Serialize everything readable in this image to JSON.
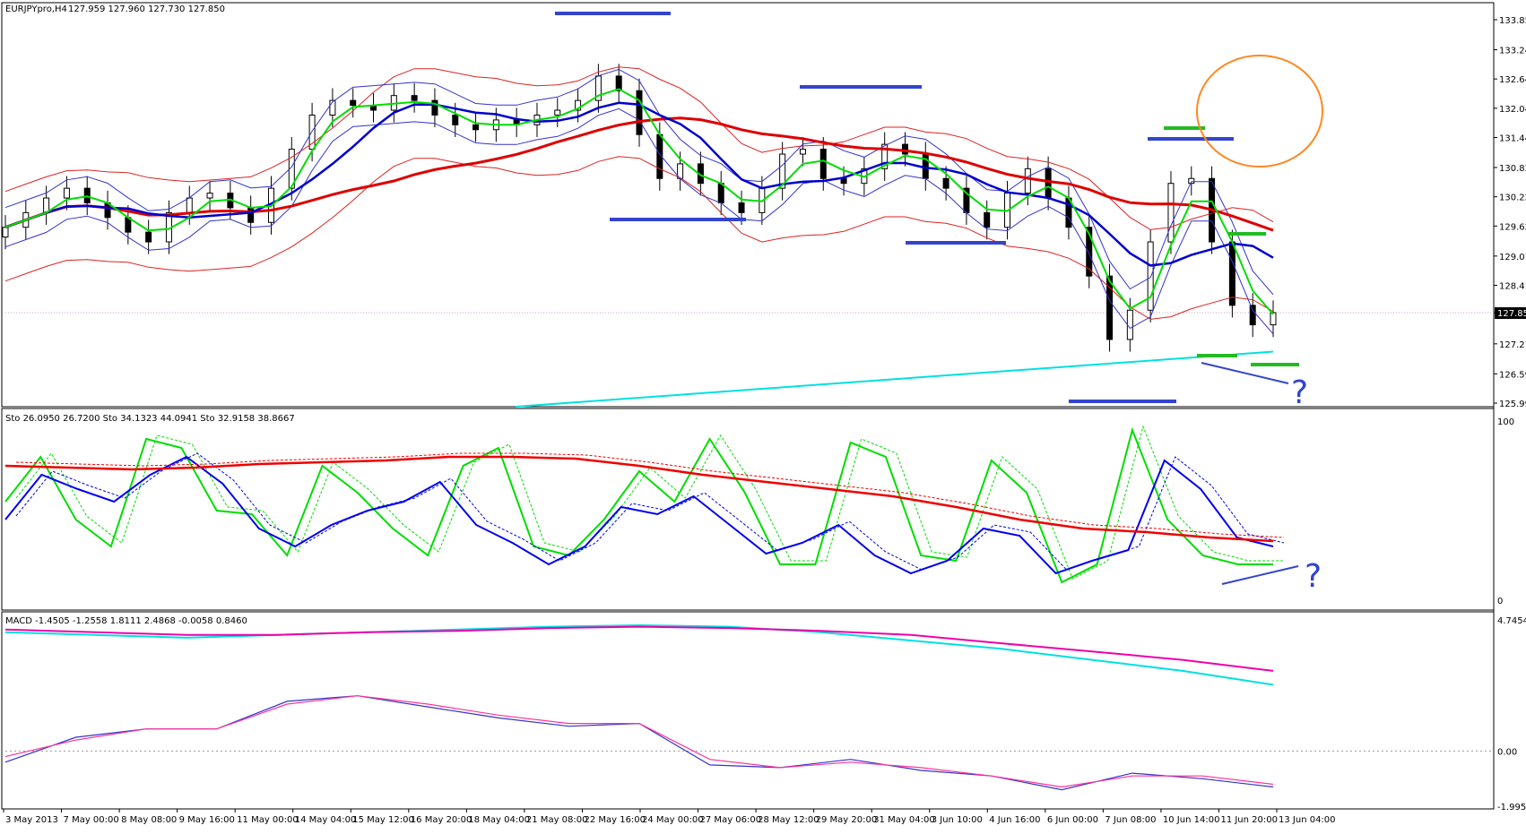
{
  "chart_data": {
    "type": "line",
    "instrument_label": "EURJPYpro,H4",
    "ohlc_label": "127.959 127.960 127.730 127.850",
    "current_price_label": "127.850",
    "price_ylim": [
      125.995,
      133.855
    ],
    "price_ticks": [
      "133.855",
      "133.240",
      "132.640",
      "132.040",
      "131.440",
      "130.825",
      "130.225",
      "129.625",
      "129.010",
      "128.410",
      "127.850",
      "127.210",
      "126.595",
      "125.995"
    ],
    "x_tick_labels": [
      "3 May 2013",
      "7 May 00:00",
      "8 May 08:00",
      "9 May 16:00",
      "11 May 00:00",
      "14 May 04:00",
      "15 May 12:00",
      "16 May 20:00",
      "18 May 04:00",
      "21 May 08:00",
      "22 May 16:00",
      "24 May 00:00",
      "27 May 06:00",
      "28 May 12:00",
      "29 May 20:00",
      "31 May 04:00",
      "3 Jun 10:00",
      "4 Jun 16:00",
      "6 Jun 00:00",
      "7 Jun 08:00",
      "10 Jun 14:00",
      "11 Jun 20:00",
      "13 Jun 04:00"
    ],
    "price_panel_series": [
      {
        "color": "#000000",
        "kind": "candles",
        "close_values": [
          129.6,
          129.9,
          130.2,
          130.4,
          130.1,
          129.8,
          129.5,
          129.3,
          129.9,
          130.2,
          130.3,
          130.0,
          129.7,
          130.4,
          131.2,
          131.9,
          132.2,
          132.1,
          132.0,
          132.3,
          132.2,
          131.9,
          131.7,
          131.6,
          131.8,
          131.7,
          131.9,
          132.0,
          132.2,
          132.7,
          132.4,
          131.5,
          130.6,
          130.9,
          130.5,
          130.1,
          129.9,
          130.4,
          131.1,
          131.2,
          130.6,
          130.5,
          130.8,
          131.3,
          131.1,
          130.6,
          130.4,
          129.9,
          129.6,
          130.3,
          130.8,
          130.2,
          129.6,
          128.6,
          127.3,
          127.9,
          129.3,
          130.5,
          130.6,
          129.3,
          128.0,
          127.6,
          127.85
        ]
      },
      {
        "color": "#00dd00",
        "kind": "moving-average-short"
      },
      {
        "color": "#0000cc",
        "kind": "moving-average-medium"
      },
      {
        "color": "#dd0000",
        "kind": "moving-average-long"
      },
      {
        "color": "#00e0e0",
        "kind": "moving-average-very-long"
      },
      {
        "color": "#3333cc",
        "kind": "bollinger-bands"
      },
      {
        "color": "#dd2222",
        "kind": "bollinger-bands-wide"
      }
    ],
    "stochastic": {
      "label": "Sto 26.0950 26.7200  Sto 34.1323 44.0941  Sto 32.9158 38.8667",
      "ylim": [
        0,
        100
      ],
      "ticks": [
        "100",
        "0"
      ],
      "series": [
        {
          "color": "#00dd00",
          "values": [
            55,
            80,
            45,
            30,
            90,
            85,
            50,
            48,
            25,
            75,
            60,
            40,
            25,
            75,
            85,
            30,
            25,
            45,
            72,
            55,
            90,
            60,
            20,
            20,
            88,
            80,
            25,
            22,
            78,
            60,
            10,
            20,
            95,
            45,
            25,
            20,
            20
          ]
        },
        {
          "color": "#0000ee",
          "values": [
            45,
            70,
            62,
            55,
            70,
            80,
            65,
            40,
            30,
            42,
            50,
            55,
            66,
            42,
            32,
            20,
            30,
            52,
            48,
            58,
            42,
            26,
            32,
            42,
            25,
            15,
            22,
            40,
            36,
            15,
            22,
            28,
            78,
            62,
            35,
            30
          ]
        },
        {
          "color": "#ee0000",
          "values": [
            75,
            74,
            73,
            74,
            76,
            77,
            78,
            80,
            80,
            79,
            75,
            70,
            66,
            62,
            58,
            52,
            45,
            40,
            38,
            35,
            33
          ]
        }
      ]
    },
    "macd": {
      "label": "MACD -1.4505 -1.2558 1.8111 2.4868 -0.0058 0.8460",
      "ticks": [
        "4.7454",
        "0.00",
        "-1.9952"
      ],
      "ylim": [
        -1.9952,
        4.7454
      ],
      "series": [
        {
          "color": "#00e0e0",
          "values": [
            4.3,
            4.2,
            4.1,
            4.2,
            4.3,
            4.4,
            4.5,
            4.55,
            4.5,
            4.3,
            4.0,
            3.7,
            3.3,
            2.9,
            2.4
          ]
        },
        {
          "color": "#ee00aa",
          "values": [
            4.4,
            4.3,
            4.2,
            4.2,
            4.3,
            4.35,
            4.45,
            4.5,
            4.45,
            4.35,
            4.2,
            3.9,
            3.6,
            3.3,
            2.9
          ]
        },
        {
          "color": "#3333cc",
          "values": [
            -0.4,
            0.5,
            0.8,
            0.8,
            1.8,
            2.0,
            1.6,
            1.2,
            0.9,
            1.0,
            -0.5,
            -0.6,
            -0.3,
            -0.7,
            -0.9,
            -1.4,
            -0.8,
            -1.0,
            -1.3
          ]
        },
        {
          "color": "#ff3399",
          "values": [
            -0.2,
            0.4,
            0.8,
            0.8,
            1.7,
            2.0,
            1.7,
            1.3,
            1.0,
            1.0,
            -0.3,
            -0.6,
            -0.4,
            -0.6,
            -0.9,
            -1.3,
            -0.9,
            -0.9,
            -1.2
          ]
        }
      ]
    },
    "annotations": {
      "question_marks": [
        "?",
        "?"
      ],
      "support_resistance_colors": {
        "resistance": "#3344cc",
        "green_marks": "#22bb22",
        "circle": "#ff8822"
      }
    }
  }
}
